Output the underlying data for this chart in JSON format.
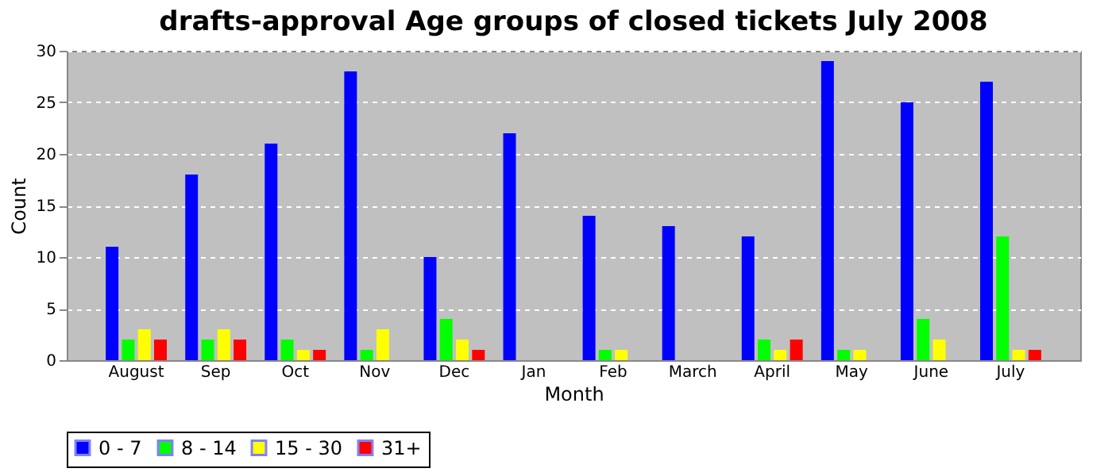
{
  "chart_data": {
    "type": "bar",
    "title": "drafts-approval Age groups of closed tickets July 2008",
    "xlabel": "Month",
    "ylabel": "Count",
    "categories": [
      "August",
      "Sep",
      "Oct",
      "Nov",
      "Dec",
      "Jan",
      "Feb",
      "March",
      "April",
      "May",
      "June",
      "July"
    ],
    "series": [
      {
        "name": "0 - 7",
        "color": "#0000ff",
        "values": [
          11,
          18,
          21,
          28,
          10,
          22,
          14,
          13,
          12,
          29,
          25,
          27
        ]
      },
      {
        "name": "8 - 14",
        "color": "#00ff00",
        "values": [
          2,
          2,
          2,
          1,
          4,
          0,
          1,
          0,
          2,
          1,
          4,
          12
        ]
      },
      {
        "name": "15 - 30",
        "color": "#ffff00",
        "values": [
          3,
          3,
          1,
          3,
          2,
          0,
          1,
          0,
          1,
          1,
          2,
          1
        ]
      },
      {
        "name": "31+",
        "color": "#ff0000",
        "values": [
          2,
          2,
          1,
          0,
          1,
          0,
          0,
          0,
          2,
          0,
          0,
          1
        ]
      }
    ],
    "ylim": [
      0,
      30
    ],
    "yticks": [
      0,
      5,
      10,
      15,
      20,
      25,
      30
    ],
    "grid": "y",
    "legend": "bottom"
  }
}
